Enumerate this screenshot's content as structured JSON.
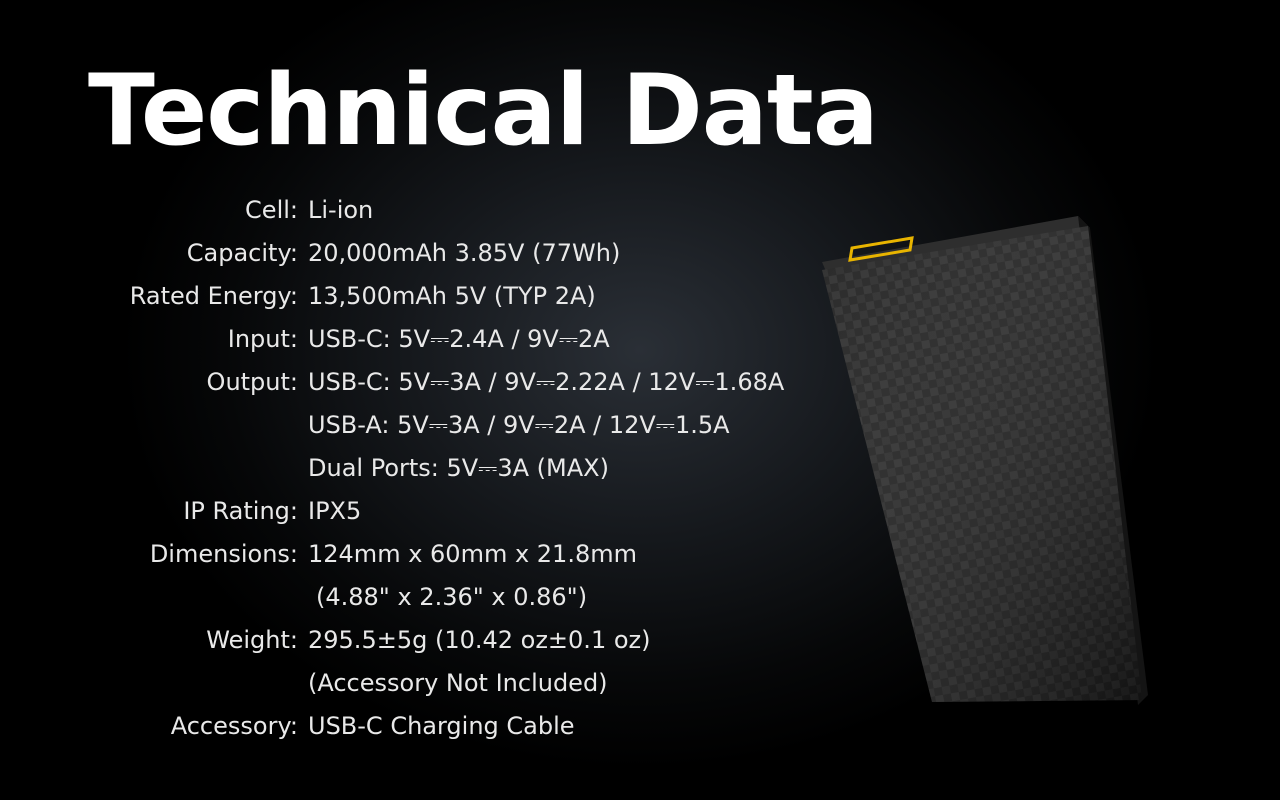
{
  "title": "Technical Data",
  "specs": [
    {
      "label": "Cell:",
      "value": "Li-ion"
    },
    {
      "label": "Capacity:",
      "value": "20,000mAh 3.85V (77Wh)"
    },
    {
      "label": "Rated Energy:",
      "value": "13,500mAh 5V (TYP 2A)"
    },
    {
      "label": "Input:",
      "value": "USB-C: 5V⎓2.4A / 9V⎓2A"
    },
    {
      "label": "Output:",
      "value": "USB-C: 5V⎓3A / 9V⎓2.22A / 12V⎓1.68A"
    },
    {
      "label": "",
      "value": "USB-A: 5V⎓3A / 9V⎓2A / 12V⎓1.5A"
    },
    {
      "label": "",
      "value": "Dual Ports: 5V⎓3A (MAX)"
    },
    {
      "label": "IP Rating:",
      "value": "IPX5"
    },
    {
      "label": "Dimensions:",
      "value": "124mm x 60mm x 21.8mm"
    },
    {
      "label": "",
      "value": "(4.88\" x 2.36\" x 0.86\")"
    },
    {
      "label": "Weight:",
      "value": "295.5±5g (10.42 oz±0.1 oz)"
    },
    {
      "label": "",
      "value": "(Accessory Not Included)"
    },
    {
      "label": "Accessory:",
      "value": "USB-C Charging Cable"
    }
  ],
  "product_image": {
    "name": "carbon-fiber-power-bank",
    "accent_color": "#e8b400"
  }
}
